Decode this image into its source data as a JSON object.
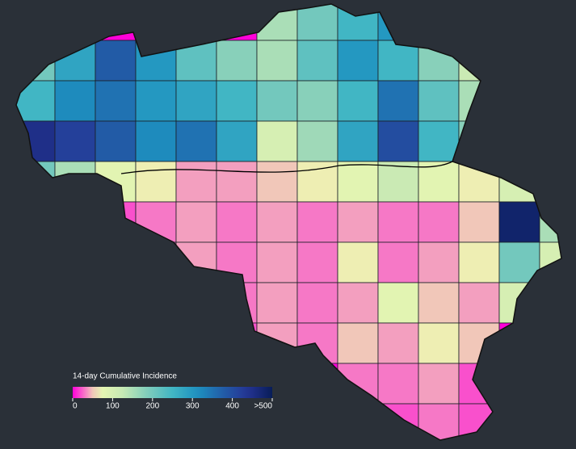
{
  "map": {
    "legend": {
      "title": "14-day Cumulative Incidence",
      "range": [
        0,
        500
      ],
      "ticks": [
        0,
        100,
        200,
        300,
        400,
        {
          "value": 500,
          "label": ">500"
        }
      ]
    },
    "cells": [
      [
        0,
        0,
        0,
        250,
        0,
        0,
        150,
        200,
        250,
        300,
        180,
        100,
        0,
        0
      ],
      [
        200,
        280,
        380,
        300,
        220,
        180,
        150,
        220,
        300,
        250,
        180,
        120,
        80,
        0
      ],
      [
        250,
        320,
        350,
        300,
        280,
        250,
        200,
        180,
        250,
        350,
        220,
        150,
        120,
        0
      ],
      [
        450,
        420,
        380,
        320,
        350,
        280,
        100,
        160,
        280,
        400,
        250,
        180,
        90,
        0
      ],
      [
        200,
        150,
        80,
        60,
        40,
        40,
        50,
        60,
        80,
        120,
        80,
        60,
        100,
        150
      ],
      [
        0,
        30,
        20,
        30,
        40,
        30,
        40,
        30,
        40,
        30,
        30,
        50,
        480,
        150
      ],
      [
        0,
        0,
        20,
        30,
        40,
        30,
        40,
        30,
        60,
        30,
        40,
        60,
        200,
        100
      ],
      [
        0,
        0,
        0,
        0,
        0,
        30,
        40,
        30,
        40,
        80,
        50,
        40,
        100,
        0
      ],
      [
        0,
        0,
        0,
        0,
        0,
        20,
        40,
        30,
        50,
        40,
        60,
        50,
        0,
        0
      ],
      [
        0,
        0,
        0,
        0,
        0,
        0,
        0,
        0,
        30,
        30,
        40,
        20,
        0,
        0
      ],
      [
        0,
        0,
        0,
        0,
        0,
        0,
        0,
        0,
        0,
        20,
        30,
        20,
        0,
        0
      ]
    ]
  }
}
